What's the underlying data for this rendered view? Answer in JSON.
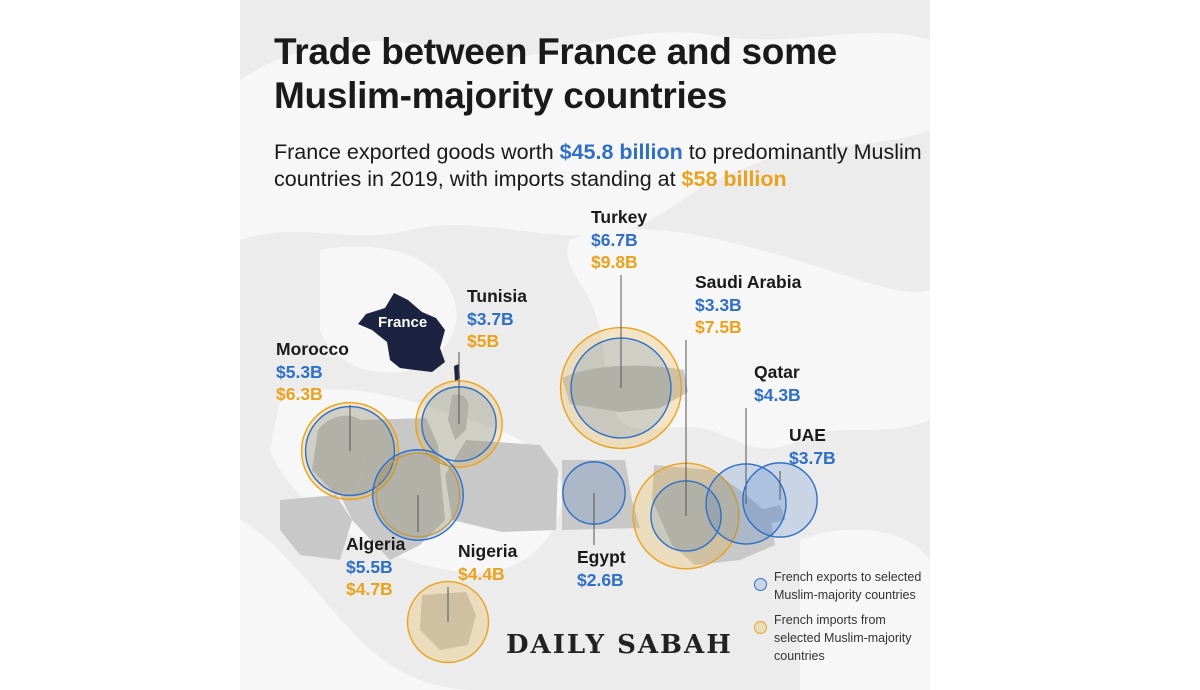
{
  "title": "Trade between France and some Muslim-majority countries",
  "subtitle": {
    "part1": "France exported goods worth ",
    "exports_total": "$45.8 billion",
    "part2": " to predominantly Muslim countries in 2019, with imports standing at ",
    "imports_total": "$58 billion"
  },
  "colors": {
    "exports": "#2f6fc7",
    "imports": "#eaa21c",
    "france": "#1c2340"
  },
  "france_label": "France",
  "countries": [
    {
      "key": "turkey",
      "name": "Turkey",
      "exports": "$6.7B",
      "imports": "$9.8B",
      "exports_value": 6.7,
      "imports_value": 9.8
    },
    {
      "key": "saudi",
      "name": "Saudi Arabia",
      "exports": "$3.3B",
      "imports": "$7.5B",
      "exports_value": 3.3,
      "imports_value": 7.5
    },
    {
      "key": "tunisia",
      "name": "Tunisia",
      "exports": "$3.7B",
      "imports": "$5B",
      "exports_value": 3.7,
      "imports_value": 5.0
    },
    {
      "key": "morocco",
      "name": "Morocco",
      "exports": "$5.3B",
      "imports": "$6.3B",
      "exports_value": 5.3,
      "imports_value": 6.3
    },
    {
      "key": "qatar",
      "name": "Qatar",
      "exports": "$4.3B",
      "exports_value": 4.3
    },
    {
      "key": "uae",
      "name": "UAE",
      "exports": "$3.7B",
      "exports_value": 3.7
    },
    {
      "key": "algeria",
      "name": "Algeria",
      "exports": "$5.5B",
      "imports": "$4.7B",
      "exports_value": 5.5,
      "imports_value": 4.7
    },
    {
      "key": "nigeria",
      "name": "Nigeria",
      "imports": "$4.4B",
      "imports_value": 4.4
    },
    {
      "key": "egypt",
      "name": "Egypt",
      "exports": "$2.6B",
      "exports_value": 2.6
    }
  ],
  "legend": {
    "exports": "French exports to selected Muslim-majority countries",
    "imports": "French imports from selected Muslim-majority countries"
  },
  "brand": "DAILY SABAH"
}
